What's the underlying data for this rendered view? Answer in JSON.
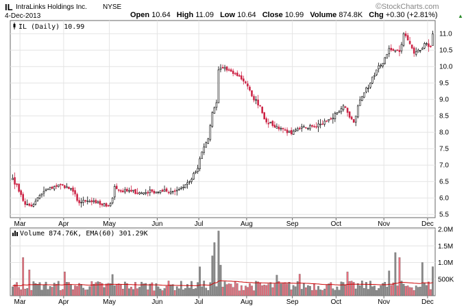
{
  "header": {
    "symbol": "IL",
    "company": "IntraLinks Holdings Inc.",
    "exchange": "NYSE",
    "date": "4-Dec-2013",
    "open_label": "Open",
    "open": "10.64",
    "high_label": "High",
    "high": "11.09",
    "low_label": "Low",
    "low": "10.64",
    "close_label": "Close",
    "close": "10.99",
    "volume_label": "Volume",
    "volume": "874.8K",
    "chg_label": "Chg",
    "chg": "+0.30 (+2.81%)",
    "brand": "StockCharts.com",
    "brand_symbol": "©",
    "chg_arrow": "▲"
  },
  "colors": {
    "up": "#000000",
    "down": "#cc2244",
    "vol_up": "#8a8a8a",
    "vol_down": "#e8707e",
    "ema": "#cc0000",
    "grid": "#e4e4e4",
    "frame": "#666666",
    "chg_up": "#2a8a2a"
  },
  "chart_data": [
    {
      "type": "candlestick",
      "legend": "IL (Daily) 10.99",
      "legend_icon": "candlestick-icon",
      "y_ticks": [
        "5.5",
        "6.0",
        "6.5",
        "7.0",
        "7.5",
        "8.0",
        "8.5",
        "9.0",
        "9.5",
        "10.0",
        "10.5",
        "11.0"
      ],
      "ylim": [
        5.4,
        11.4
      ],
      "x_labels": [
        "Mar",
        "Apr",
        "May",
        "Jun",
        "Jul",
        "Aug",
        "Sep",
        "Oct",
        "Nov",
        "Dec"
      ],
      "grid": true,
      "price_anchors": [
        [
          "2013-02-25",
          6.6
        ],
        [
          "2013-03-01",
          6.1
        ],
        [
          "2013-03-05",
          5.8
        ],
        [
          "2013-03-08",
          5.75
        ],
        [
          "2013-03-12",
          5.9
        ],
        [
          "2013-03-18",
          6.2
        ],
        [
          "2013-03-25",
          6.35
        ],
        [
          "2013-03-29",
          6.4
        ],
        [
          "2013-04-05",
          6.2
        ],
        [
          "2013-04-10",
          5.85
        ],
        [
          "2013-04-15",
          5.9
        ],
        [
          "2013-04-22",
          5.85
        ],
        [
          "2013-04-30",
          5.75
        ],
        [
          "2013-05-02",
          6.0
        ],
        [
          "2013-05-03",
          6.35
        ],
        [
          "2013-05-08",
          6.2
        ],
        [
          "2013-05-15",
          6.2
        ],
        [
          "2013-05-22",
          6.15
        ],
        [
          "2013-05-29",
          6.2
        ],
        [
          "2013-06-05",
          6.2
        ],
        [
          "2013-06-12",
          6.2
        ],
        [
          "2013-06-18",
          6.3
        ],
        [
          "2013-06-24",
          6.5
        ],
        [
          "2013-06-28",
          6.9
        ],
        [
          "2013-07-02",
          7.4
        ],
        [
          "2013-07-05",
          7.8
        ],
        [
          "2013-07-09",
          8.6
        ],
        [
          "2013-07-11",
          8.9
        ],
        [
          "2013-07-12",
          9.9
        ],
        [
          "2013-07-16",
          9.95
        ],
        [
          "2013-07-22",
          9.85
        ],
        [
          "2013-07-26",
          9.7
        ],
        [
          "2013-07-31",
          9.5
        ],
        [
          "2013-08-05",
          9.1
        ],
        [
          "2013-08-09",
          8.8
        ],
        [
          "2013-08-13",
          8.4
        ],
        [
          "2013-08-19",
          8.2
        ],
        [
          "2013-08-26",
          8.1
        ],
        [
          "2013-08-30",
          7.95
        ],
        [
          "2013-09-05",
          8.1
        ],
        [
          "2013-09-12",
          8.2
        ],
        [
          "2013-09-19",
          8.25
        ],
        [
          "2013-09-26",
          8.4
        ],
        [
          "2013-10-01",
          8.6
        ],
        [
          "2013-10-04",
          8.8
        ],
        [
          "2013-10-08",
          8.6
        ],
        [
          "2013-10-11",
          8.3
        ],
        [
          "2013-10-15",
          8.8
        ],
        [
          "2013-10-18",
          9.2
        ],
        [
          "2013-10-23",
          9.5
        ],
        [
          "2013-10-28",
          9.9
        ],
        [
          "2013-10-31",
          10.1
        ],
        [
          "2013-11-05",
          10.55
        ],
        [
          "2013-11-08",
          10.5
        ],
        [
          "2013-11-12",
          10.45
        ],
        [
          "2013-11-14",
          11.0
        ],
        [
          "2013-11-18",
          10.8
        ],
        [
          "2013-11-21",
          10.4
        ],
        [
          "2013-11-25",
          10.5
        ],
        [
          "2013-11-29",
          10.7
        ],
        [
          "2013-12-03",
          10.6
        ],
        [
          "2013-12-04",
          10.99
        ]
      ]
    },
    {
      "type": "bar",
      "legend": "Volume 874.76K, EMA(60) 301.29K",
      "legend_icon": "volume-bars-icon",
      "y_ticks": [
        "500K",
        "1.0M",
        "1.5M",
        "2.0M"
      ],
      "ylim": [
        0,
        2000000
      ],
      "x_labels": [
        "Mar",
        "Apr",
        "May",
        "Jun",
        "Jul",
        "Aug",
        "Sep",
        "Oct",
        "Nov",
        "Dec"
      ],
      "ema_value": 301290,
      "last_volume": 874760,
      "volume_spikes": [
        [
          "2013-03-04",
          1150000
        ],
        [
          "2013-03-07",
          780000
        ],
        [
          "2013-04-01",
          720000
        ],
        [
          "2013-05-02",
          640000
        ],
        [
          "2013-07-01",
          870000
        ],
        [
          "2013-07-09",
          1200000
        ],
        [
          "2013-07-10",
          1600000
        ],
        [
          "2013-07-12",
          1950000
        ],
        [
          "2013-07-15",
          920000
        ],
        [
          "2013-08-21",
          620000
        ],
        [
          "2013-09-05",
          650000
        ],
        [
          "2013-10-08",
          720000
        ],
        [
          "2013-11-05",
          750000
        ],
        [
          "2013-11-08",
          1300000
        ],
        [
          "2013-11-12",
          1150000
        ],
        [
          "2013-11-27",
          1000000
        ],
        [
          "2013-12-04",
          874760
        ]
      ]
    }
  ]
}
